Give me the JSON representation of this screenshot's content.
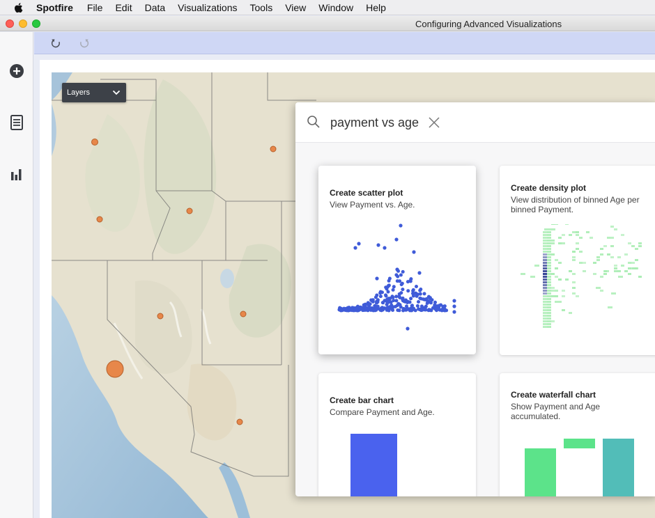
{
  "menubar": {
    "app_name": "Spotfire",
    "items": [
      "File",
      "Edit",
      "Data",
      "Visualizations",
      "Tools",
      "View",
      "Window",
      "Help"
    ]
  },
  "window": {
    "title": "Configuring Advanced Visualizations"
  },
  "leftnav": {
    "icons": [
      "add-icon",
      "data-table-icon",
      "bar-chart-icon"
    ]
  },
  "toolbar": {
    "icons": [
      "undo-icon",
      "redo-icon"
    ]
  },
  "map": {
    "layers_label": "Layers",
    "marker_color": "#e7874a"
  },
  "search": {
    "value": "payment vs age"
  },
  "cards": [
    {
      "title": "Create scatter plot",
      "description": "View Payment vs. Age."
    },
    {
      "title": "Create density plot",
      "description": "View distribution of binned Age per binned Payment."
    },
    {
      "title": "Create bar chart",
      "description": "Compare Payment and Age."
    },
    {
      "title": "Create waterfall chart",
      "description": "Show Payment and Age accumulated."
    }
  ],
  "colors": {
    "accent_blue": "#4a62ee",
    "scatter_blue": "#3f5bd8",
    "density_green": "#a6ecb0",
    "density_dark": "#1c2e8a",
    "waterfall_green": "#5ce38a",
    "waterfall_teal": "#52bdb8",
    "toolbar": "#cfd7f5"
  }
}
